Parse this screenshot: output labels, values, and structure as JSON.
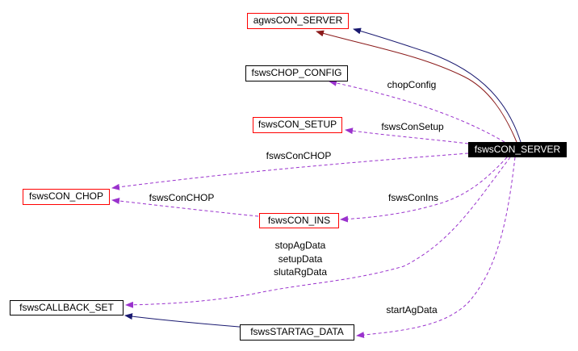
{
  "nodes": {
    "agws_con_server": "agwsCON_SERVER",
    "fsws_chop_config": "fswsCHOP_CONFIG",
    "fsws_con_setup": "fswsCON_SETUP",
    "fsws_con_server": "fswsCON_SERVER",
    "fsws_con_chop": "fswsCON_CHOP",
    "fsws_con_ins": "fswsCON_INS",
    "fsws_callback_set": "fswsCALLBACK_SET",
    "fsws_startag_data": "fswsSTARTAG_DATA"
  },
  "edge_labels": {
    "chop_config": "chopConfig",
    "con_setup": "fswsConSetup",
    "con_chop_server": "fswsConCHOP",
    "con_chop_ins": "fswsConCHOP",
    "con_ins": "fswsConIns",
    "callback_1": "stopAgData",
    "callback_2": "setupData",
    "callback_3": "slutaRgData",
    "start_ag": "startAgData"
  },
  "colors": {
    "inheritance_public": "#191970",
    "inheritance_protected": "#8b1a1a",
    "usage": "#9a32cd",
    "documented_border": "#ff0000"
  }
}
